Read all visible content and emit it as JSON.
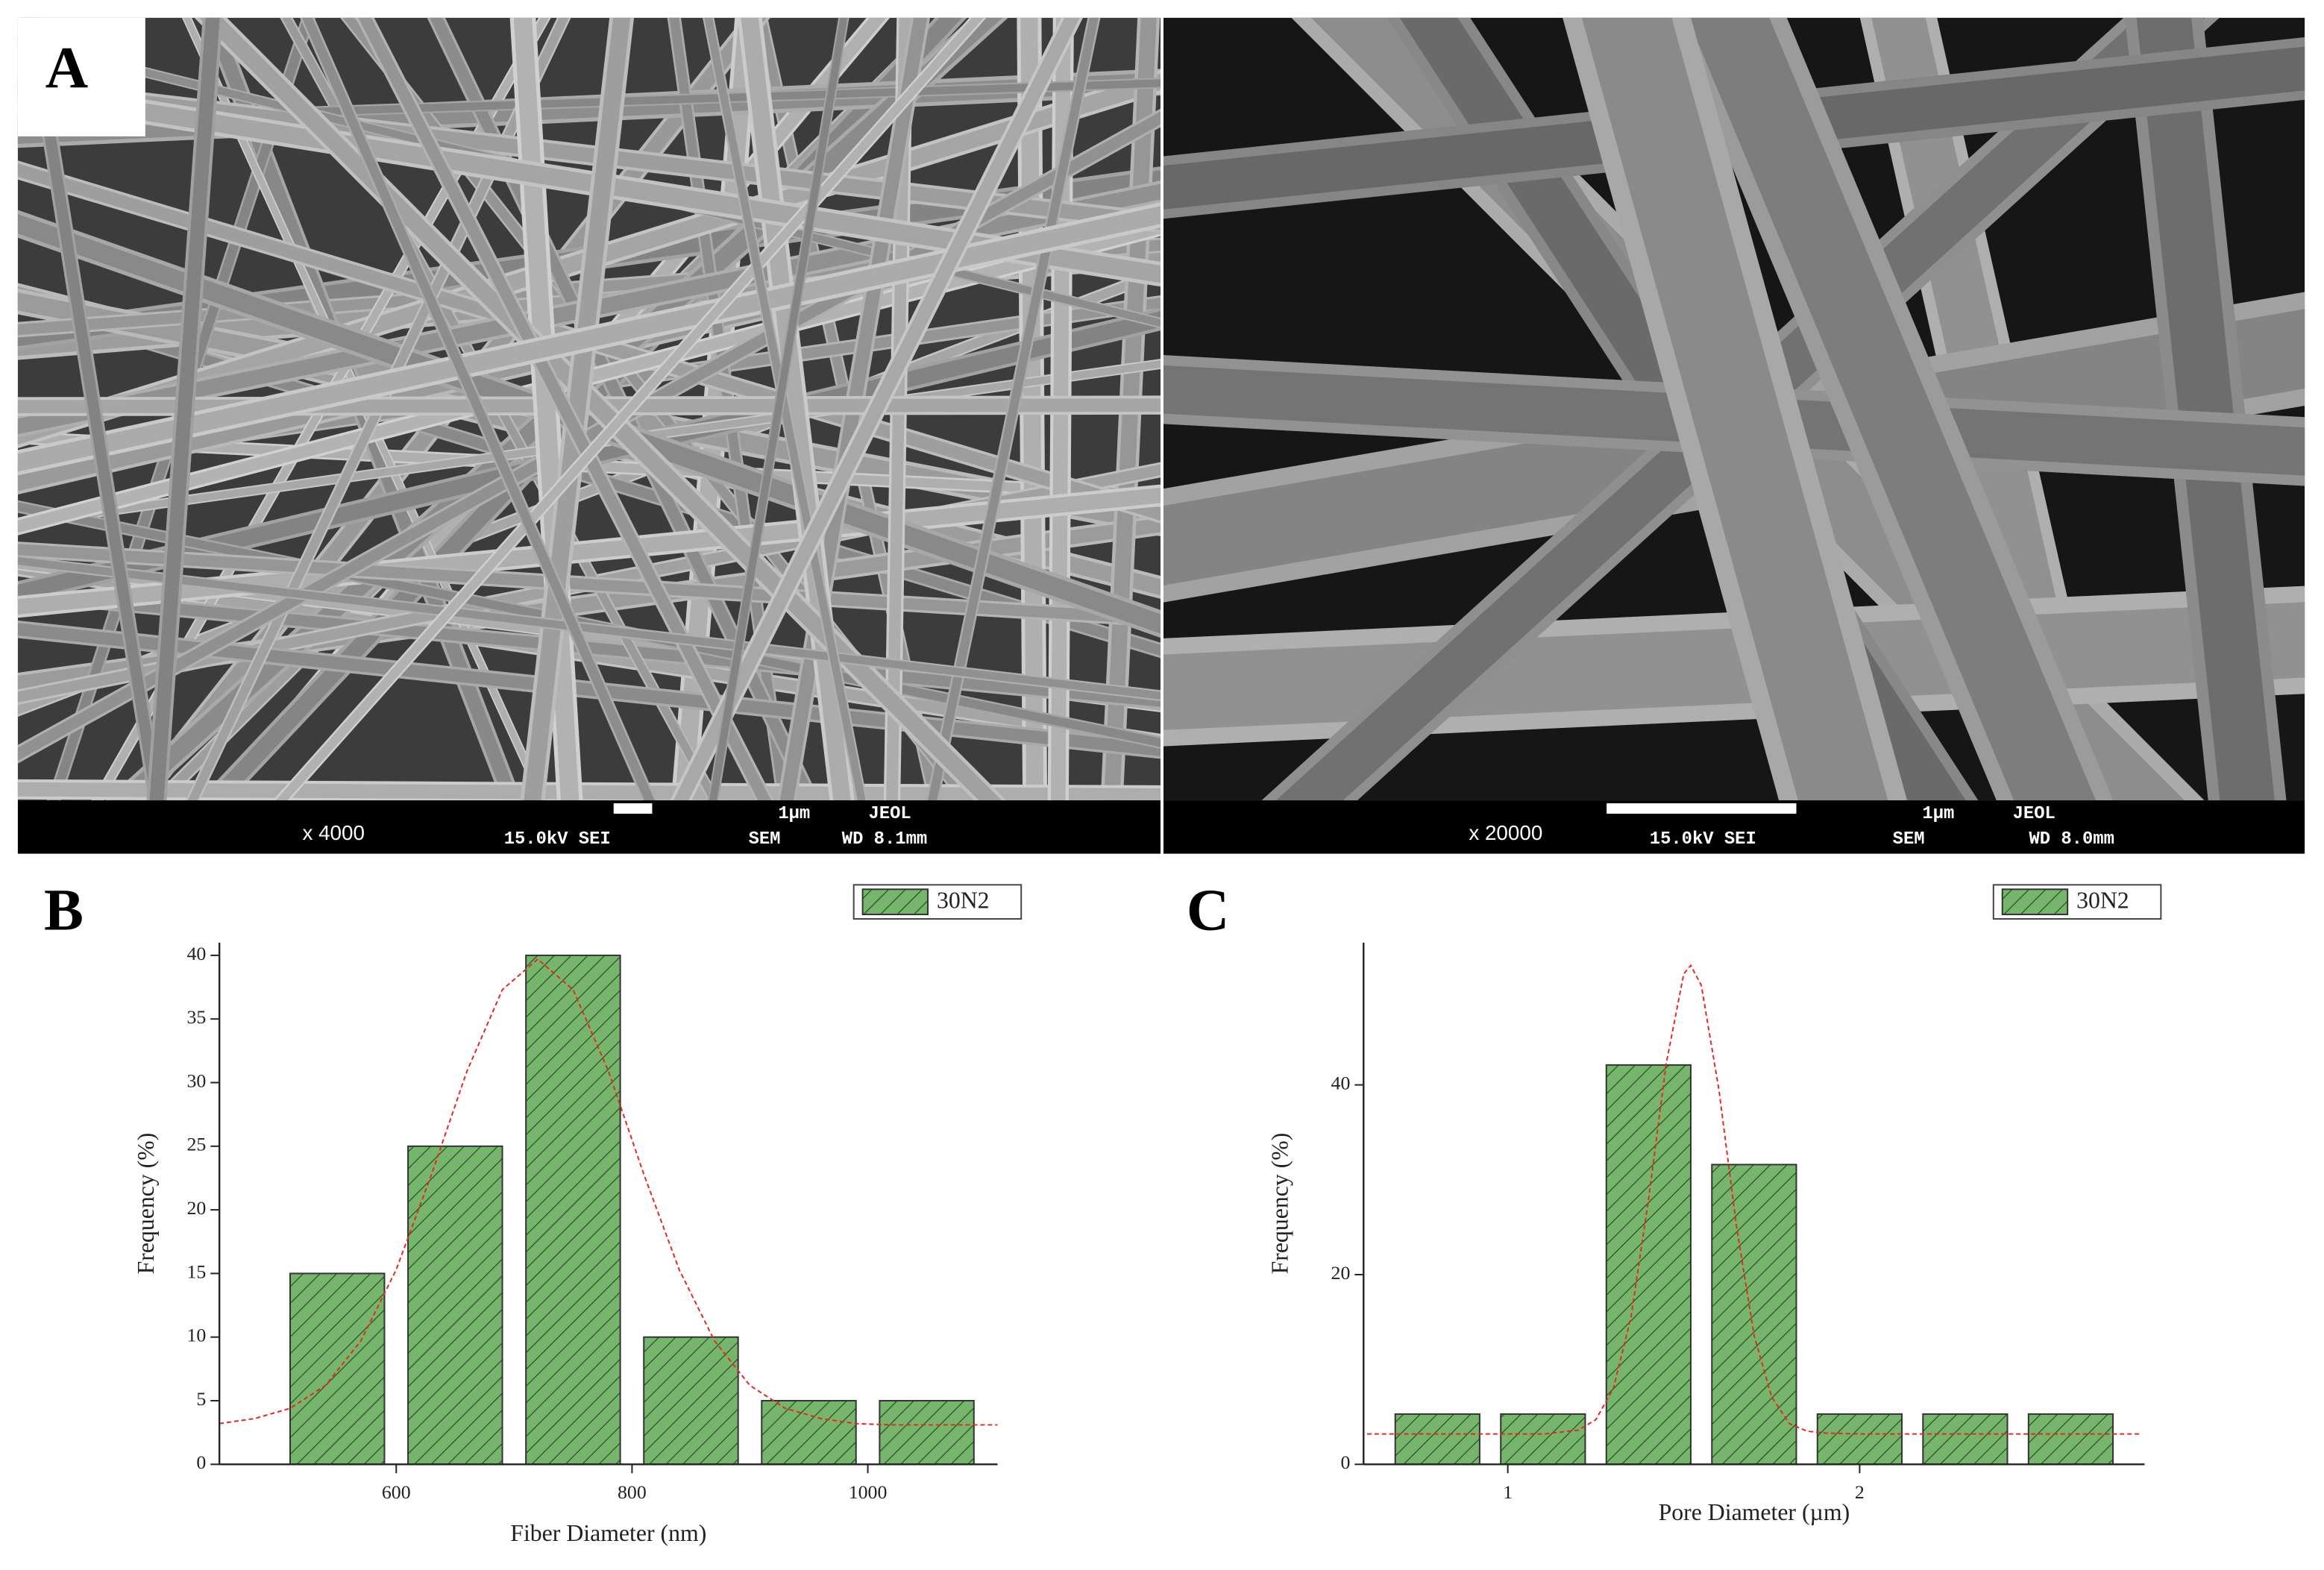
{
  "panel_a": {
    "label": "A",
    "images": [
      {
        "magnification": "x 4000",
        "voltage": "15.0kV SEI",
        "scale": "1μm",
        "maker": "JEOL",
        "mode": "SEM",
        "working_distance": "WD 8.1mm"
      },
      {
        "magnification": "x 20000",
        "voltage": "15.0kV SEI",
        "scale": "1μm",
        "maker": "JEOL",
        "mode": "SEM",
        "working_distance": "WD 8.0mm"
      }
    ]
  },
  "chart_data": [
    {
      "type": "histogram",
      "panel_label": "B",
      "x_label": "Fiber Diameter (nm)",
      "y_label": "Frequency (%)",
      "bins": [
        500,
        600,
        700,
        800,
        900,
        1000,
        1100
      ],
      "series": [
        {
          "name": "30N2",
          "color": "#76b56c",
          "values": [
            15,
            25,
            40,
            10,
            5,
            5
          ]
        }
      ],
      "xlim": [
        450,
        1110
      ],
      "ylim": [
        0,
        41
      ],
      "xticks": [
        600,
        800,
        1000
      ],
      "yticks": [
        0,
        5,
        10,
        15,
        20,
        25,
        30,
        35,
        40
      ],
      "fit": {
        "color": "#e8281e",
        "x": [
          450,
          480,
          510,
          540,
          570,
          600,
          630,
          660,
          690,
          720,
          750,
          780,
          810,
          840,
          870,
          900,
          930,
          960,
          990,
          1020,
          1050,
          1080,
          1110
        ],
        "values": [
          3.2,
          3.6,
          4.4,
          6.2,
          9.7,
          15.3,
          22.8,
          30.9,
          37.3,
          39.7,
          37.3,
          30.9,
          22.8,
          15.3,
          9.7,
          6.2,
          4.4,
          3.6,
          3.2,
          3.1,
          3.1,
          3.1,
          3.1
        ]
      }
    },
    {
      "type": "histogram",
      "panel_label": "C",
      "x_label": "Pore Diameter (µm)",
      "y_label": "Frequency (%)",
      "bins": [
        0.65,
        0.95,
        1.25,
        1.55,
        1.85,
        2.15,
        2.45,
        2.75
      ],
      "series": [
        {
          "name": "30N2",
          "color": "#76b56c",
          "values": [
            5.3,
            5.3,
            42.1,
            31.6,
            5.3,
            5.3,
            5.3
          ]
        }
      ],
      "xlim": [
        0.59,
        2.81
      ],
      "ylim": [
        0,
        55
      ],
      "xticks": [
        1,
        2
      ],
      "yticks": [
        0,
        20,
        40
      ],
      "fit": {
        "color": "#e8281e",
        "x": [
          0.6,
          0.8,
          1.0,
          1.1,
          1.2,
          1.25,
          1.3,
          1.35,
          1.4,
          1.45,
          1.5,
          1.52,
          1.55,
          1.6,
          1.65,
          1.7,
          1.75,
          1.8,
          1.85,
          1.9,
          2.0,
          2.2,
          2.4,
          2.6,
          2.8
        ],
        "values": [
          3.2,
          3.2,
          3.2,
          3.2,
          3.6,
          4.7,
          8.0,
          15.5,
          27.9,
          42.2,
          51.7,
          52.6,
          50.5,
          39.5,
          25.1,
          13.6,
          7.1,
          4.3,
          3.5,
          3.3,
          3.2,
          3.2,
          3.2,
          3.2,
          3.2
        ]
      }
    }
  ]
}
